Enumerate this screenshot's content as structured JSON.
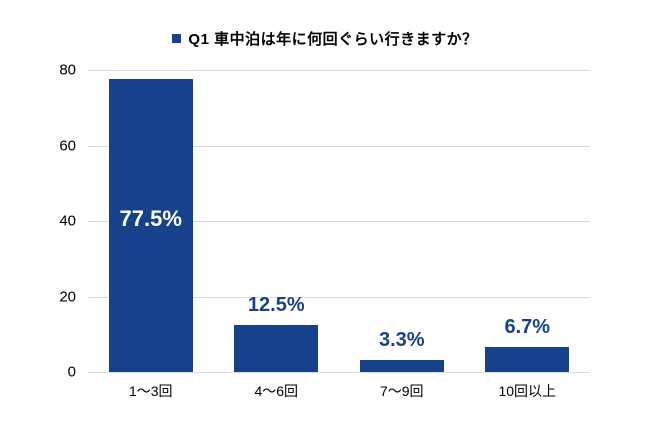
{
  "chart_data": {
    "type": "bar",
    "title": "Q1 車中泊は年に何回ぐらい行きますか？",
    "categories": [
      "1〜3回",
      "4〜6回",
      "7〜9回",
      "10回以上"
    ],
    "values": [
      77.5,
      12.5,
      3.3,
      6.7
    ],
    "value_labels": [
      "77.5%",
      "12.5%",
      "3.3%",
      "6.7%"
    ],
    "xlabel": "",
    "ylabel": "",
    "ylim": [
      0,
      80
    ],
    "yticks": [
      0,
      20,
      40,
      60,
      80
    ],
    "grid": true,
    "legend_position": "top-center",
    "colors": {
      "bar": "#17418b",
      "value_label_outside": "#17418b",
      "value_label_inside": "#ffffff",
      "gridline": "#d9d9d9",
      "axis_text": "#000000",
      "background": "#ffffff"
    }
  }
}
